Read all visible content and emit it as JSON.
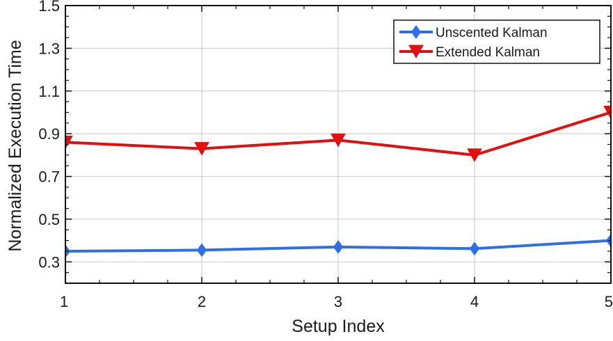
{
  "chart_data": {
    "type": "line",
    "xlabel": "Setup Index",
    "ylabel": "Normalized Execution Time",
    "xlim": [
      1,
      5
    ],
    "ylim": [
      0.2,
      1.5
    ],
    "x_ticks": [
      1,
      2,
      3,
      4,
      5
    ],
    "y_ticks": [
      0.3,
      0.5,
      0.7,
      0.9,
      1.1,
      1.3,
      1.5
    ],
    "y_tick_labels": [
      "0.3",
      "0.5",
      "0.7",
      "0.9",
      "1.1",
      "1.3",
      "1.5"
    ],
    "grid": true,
    "legend_position": "top-right",
    "x": [
      1,
      2,
      3,
      4,
      5
    ],
    "series": [
      {
        "name": "Unscented Kalman",
        "values": [
          0.35,
          0.355,
          0.37,
          0.362,
          0.4
        ],
        "color": "#2f6fe6",
        "marker": "diamond"
      },
      {
        "name": "Extended Kalman",
        "values": [
          0.86,
          0.83,
          0.87,
          0.8,
          1.0
        ],
        "color": "#e01010",
        "marker": "triangle-down"
      }
    ]
  }
}
